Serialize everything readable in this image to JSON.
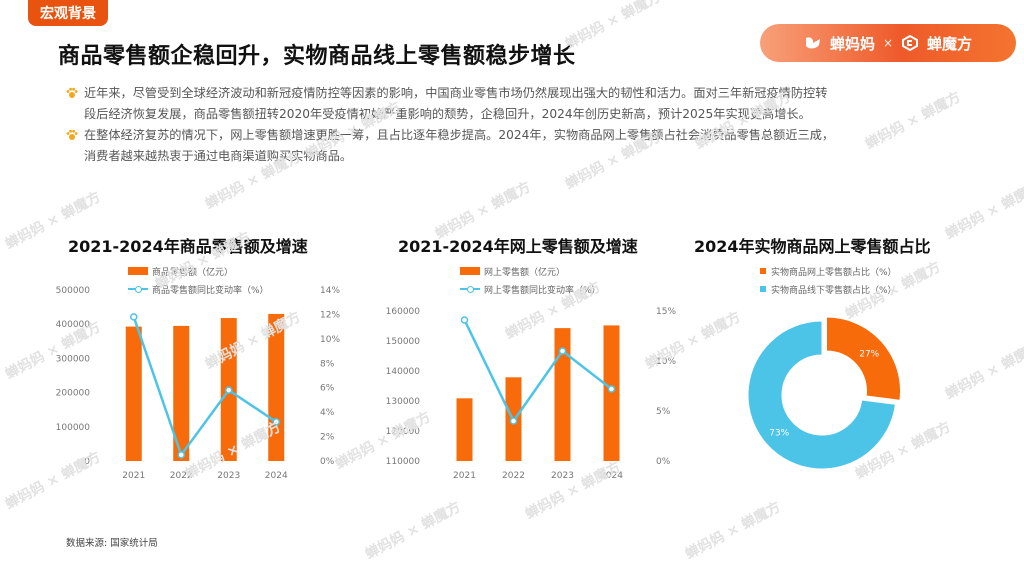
{
  "section_tag": "宏观背景",
  "title": "商品零售额企稳回升，实物商品线上零售额稳步增长",
  "brand": {
    "left": "蝉妈妈",
    "separator": "×",
    "right": "蝉魔方"
  },
  "watermark": {
    "left": "蝉妈妈",
    "separator": "×",
    "right": "蝉魔方"
  },
  "paragraphs": [
    {
      "line1": "近年来，尽管受到全球经济波动和新冠疫情防控等因素的影响，中国商业零售市场仍然展现出强大的韧性和活力。面对三年新冠疫情防控转",
      "line2": "段后经济恢复发展，商品零售额扭转2020年受疫情初始严重影响的颓势，企稳回升，2024年创历史新高，预计2025年实现更高增长。"
    },
    {
      "line1": "在整体经济复苏的情况下，网上零售额增速更胜一筹，且占比逐年稳步提高。2024年，实物商品网上零售额占社会消费品零售总额近三成，",
      "line2": "消费者越来越热衷于通过电商渠道购买实物商品。"
    }
  ],
  "colors": {
    "bar": "#f76b0b",
    "line": "#4cc4e8",
    "accent": "#e8540f"
  },
  "chart_data": [
    {
      "type": "bar",
      "title": "2021-2024年商品零售额及增速",
      "categories": [
        "2021",
        "2022",
        "2023",
        "2024"
      ],
      "series": [
        {
          "name": "商品零售额（亿元）",
          "kind": "bar",
          "axis": "left",
          "values": [
            393000,
            395000,
            418000,
            430000
          ]
        },
        {
          "name": "商品零售额同比变动率（%）",
          "kind": "line",
          "axis": "right",
          "values": [
            11.8,
            0.5,
            5.8,
            3.2
          ]
        }
      ],
      "ylim_left": [
        0,
        500000
      ],
      "yticks_left": [
        "0",
        "100000",
        "200000",
        "300000",
        "400000",
        "500000"
      ],
      "ylim_right": [
        0,
        14
      ],
      "yticks_right": [
        "0%",
        "2%",
        "4%",
        "6%",
        "8%",
        "10%",
        "12%",
        "14%"
      ],
      "grid": false,
      "legend": "top"
    },
    {
      "type": "bar",
      "title": "2021-2024年网上零售额及增速",
      "categories": [
        "2021",
        "2022",
        "2023",
        "2024"
      ],
      "series": [
        {
          "name": "网上零售额（亿元）",
          "kind": "bar",
          "axis": "left",
          "values": [
            130900,
            137900,
            154300,
            155200
          ]
        },
        {
          "name": "网上零售额同比变动率（%）",
          "kind": "line",
          "axis": "right",
          "values": [
            14.1,
            4.0,
            11.0,
            7.2
          ]
        }
      ],
      "ylim_left": [
        110000,
        160000
      ],
      "yticks_left": [
        "110000",
        "120000",
        "130000",
        "140000",
        "150000",
        "160000"
      ],
      "ylim_right": [
        0,
        15
      ],
      "yticks_right": [
        "0%",
        "5%",
        "10%",
        "15%"
      ],
      "grid": false,
      "legend": "top"
    },
    {
      "type": "pie",
      "title": "2024年实物商品网上零售额占比",
      "labels": [
        "实物商品网上零售额占比（%）",
        "实物商品线下零售额占比（%）"
      ],
      "values": [
        27,
        73
      ],
      "value_labels": [
        "27%",
        "73%"
      ],
      "colors": [
        "#f76b0b",
        "#4cc4e8"
      ],
      "legend": "top"
    }
  ],
  "source": "数据来源: 国家统计局"
}
